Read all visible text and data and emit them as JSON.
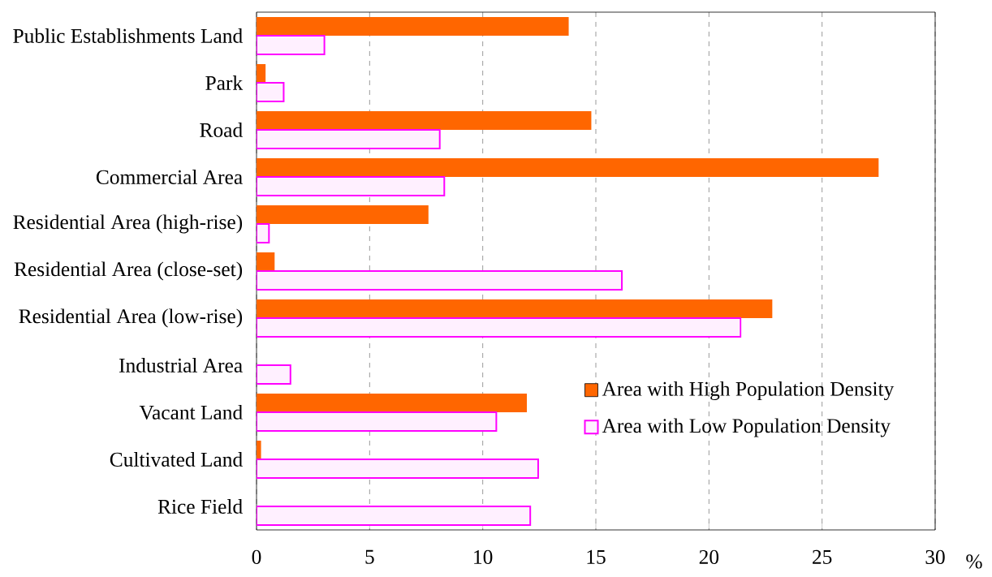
{
  "chart_data": {
    "type": "bar",
    "orientation": "horizontal",
    "xlabel": "%",
    "categories": [
      "Public Establishments Land",
      "Park",
      "Road",
      "Commercial Area",
      "Residential Area (high-rise)",
      "Residential Area (close-set)",
      "Residential Area (low-rise)",
      "Industrial Area",
      "Vacant Land",
      "Cultivated Land",
      "Rice Field"
    ],
    "series": [
      {
        "name": "Area with High Population Density",
        "color": "#ff6600",
        "values": [
          13.8,
          0.4,
          14.8,
          27.5,
          7.6,
          0.8,
          22.8,
          null,
          11.95,
          0.2,
          null
        ]
      },
      {
        "name": "Area with Low Population Density",
        "color": "#ff00ff",
        "values": [
          3.0,
          1.2,
          8.1,
          8.3,
          0.55,
          16.15,
          21.4,
          1.5,
          10.6,
          12.45,
          12.1
        ]
      }
    ],
    "xlim": [
      0,
      30
    ],
    "xticks": [
      0,
      5,
      10,
      15,
      20,
      25,
      30
    ],
    "grid": "x",
    "legend": "bottom right"
  }
}
